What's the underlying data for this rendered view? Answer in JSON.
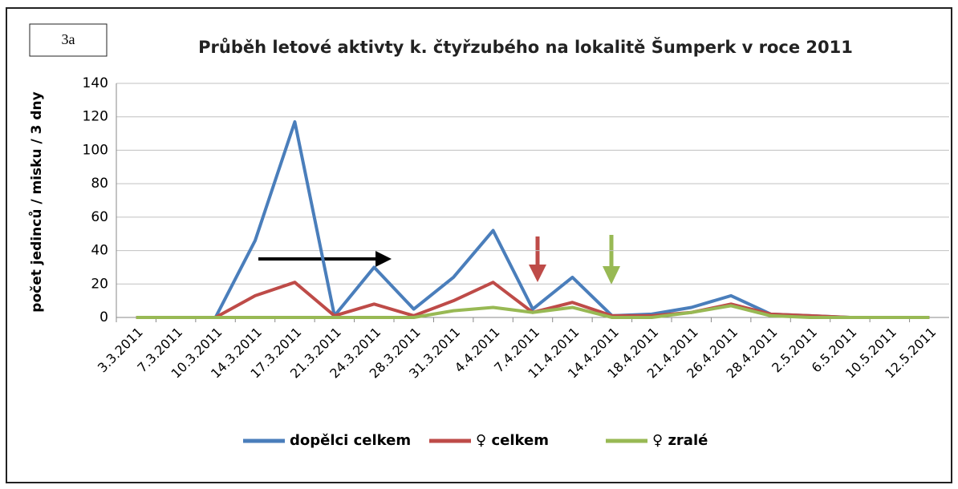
{
  "chart_data": {
    "type": "line",
    "label": "3a",
    "title": "Průběh letové aktivty k. čtyřzubého na lokalitě Šumperk v roce 2011",
    "y_label": "počet jedinců / misku / 3 dny",
    "categories": [
      "3.3.2011",
      "7.3.2011",
      "10.3.2011",
      "14.3.2011",
      "17.3.2011",
      "21.3.2011",
      "24.3.2011",
      "28.3.2011",
      "31.3.2011",
      "4.4.2011",
      "7.4.2011",
      "11.4.2011",
      "14.4.2011",
      "18.4.2011",
      "21.4.2011",
      "26.4.2011",
      "28.4.2011",
      "2.5.2011",
      "6.5.2011",
      "10.5.2011",
      "12.5.2011"
    ],
    "series": [
      {
        "name": "dopělci celkem",
        "color": "#4a7ebb",
        "values": [
          0,
          0,
          0,
          46,
          117,
          1,
          30,
          5,
          24,
          52,
          5,
          24,
          1,
          2,
          6,
          13,
          2,
          1,
          0,
          0,
          0
        ]
      },
      {
        "name": "♀ celkem",
        "color": "#be4b48",
        "values": [
          0,
          0,
          0,
          13,
          21,
          1,
          8,
          1,
          10,
          21,
          3,
          9,
          1,
          1,
          3,
          8,
          2,
          1,
          0,
          0,
          0
        ]
      },
      {
        "name": "♀ zralé",
        "color": "#98b954",
        "values": [
          0,
          0,
          0,
          0,
          0,
          0,
          0,
          0,
          4,
          6,
          3,
          6,
          0,
          0,
          3,
          7,
          1,
          0,
          0,
          0,
          0
        ]
      }
    ],
    "ylim": [
      0,
      140
    ],
    "yticks": [
      0,
      20,
      40,
      60,
      80,
      100,
      120,
      140
    ],
    "grid": true,
    "legend": "bottom"
  }
}
